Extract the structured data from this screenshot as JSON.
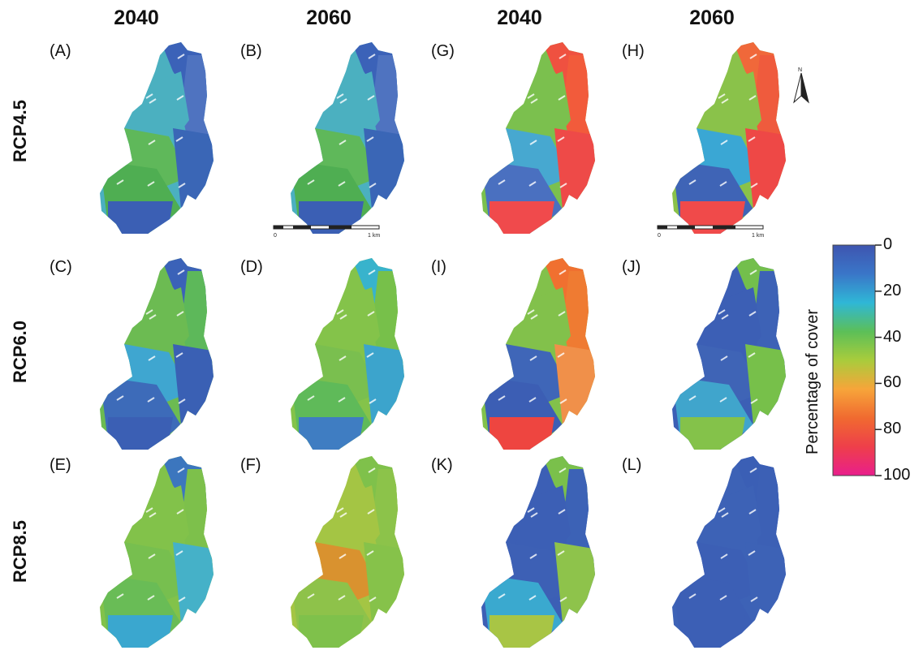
{
  "columns": [
    "2040",
    "2060",
    "2040",
    "2060"
  ],
  "rows": [
    "RCP4.5",
    "RCP6.0",
    "RCP8.5"
  ],
  "panels": [
    {
      "label": "(A)",
      "scheme": [
        "#3b62b8",
        "#4f73c0",
        "#4bb0c0",
        "#5fb85a",
        "#4fae52",
        "#3a66b6",
        "#3b5fb4"
      ]
    },
    {
      "label": "(B)",
      "scheme": [
        "#3b62b8",
        "#4f73c0",
        "#4bb0c0",
        "#5fb85a",
        "#4fae52",
        "#3a66b6",
        "#3b5fb4"
      ]
    },
    {
      "label": "(G)",
      "scheme": [
        "#ef5140",
        "#f25b3b",
        "#7bc04e",
        "#47a8d0",
        "#4a70c0",
        "#ee4a48",
        "#f04a4c"
      ]
    },
    {
      "label": "(H)",
      "scheme": [
        "#f0683a",
        "#ef5b3d",
        "#8ac24a",
        "#3aa7d4",
        "#3f64b6",
        "#ee4846",
        "#f04a4a"
      ]
    },
    {
      "label": "(C)",
      "scheme": [
        "#3b62b8",
        "#5db85a",
        "#6cbb52",
        "#3fa6d0",
        "#3d6bb9",
        "#3a60b4",
        "#3b5fb4"
      ]
    },
    {
      "label": "(D)",
      "scheme": [
        "#38b3cc",
        "#77c04a",
        "#84c34a",
        "#7abf4f",
        "#5fba59",
        "#3ca4cc",
        "#3f7dc2"
      ]
    },
    {
      "label": "(I)",
      "scheme": [
        "#f07030",
        "#ef7b32",
        "#82c14b",
        "#3f66b8",
        "#3c5eb4",
        "#f0904a",
        "#ee4540"
      ]
    },
    {
      "label": "(J)",
      "scheme": [
        "#73bf4c",
        "#3d62b6",
        "#3c5fb5",
        "#3f64b6",
        "#40a5cc",
        "#77c04a",
        "#84c24a"
      ]
    },
    {
      "label": "(E)",
      "scheme": [
        "#3c76be",
        "#7dc04b",
        "#82c24a",
        "#77bf4f",
        "#69bc56",
        "#45b1c8",
        "#3aa7cf"
      ]
    },
    {
      "label": "(F)",
      "scheme": [
        "#7fc14b",
        "#8cc34a",
        "#a4c544",
        "#d9922f",
        "#8ec24a",
        "#86c24a",
        "#7fc14b"
      ]
    },
    {
      "label": "(K)",
      "scheme": [
        "#7ac04b",
        "#3c62b6",
        "#3c5fb5",
        "#3d60b5",
        "#3aa9cf",
        "#8ec34b",
        "#a8c545"
      ]
    },
    {
      "label": "(L)",
      "scheme": [
        "#3b5fb5",
        "#3c60b5",
        "#3d62b6",
        "#3c5fb5",
        "#3c5fb5",
        "#3d62b6",
        "#3c5fb5"
      ]
    }
  ],
  "scalebar": {
    "left_text": "0",
    "right_text": "1 km"
  },
  "legend": {
    "title": "Percentage of cover",
    "ticks": [
      "0",
      "20",
      "40",
      "60",
      "80",
      "100"
    ],
    "gradient": [
      "#3e55b0",
      "#3a76c8",
      "#2fb7d6",
      "#5cbf58",
      "#a9cc3c",
      "#f7a53a",
      "#f06a30",
      "#ee3f4a",
      "#e91e8c"
    ]
  },
  "north_symbol": "N"
}
